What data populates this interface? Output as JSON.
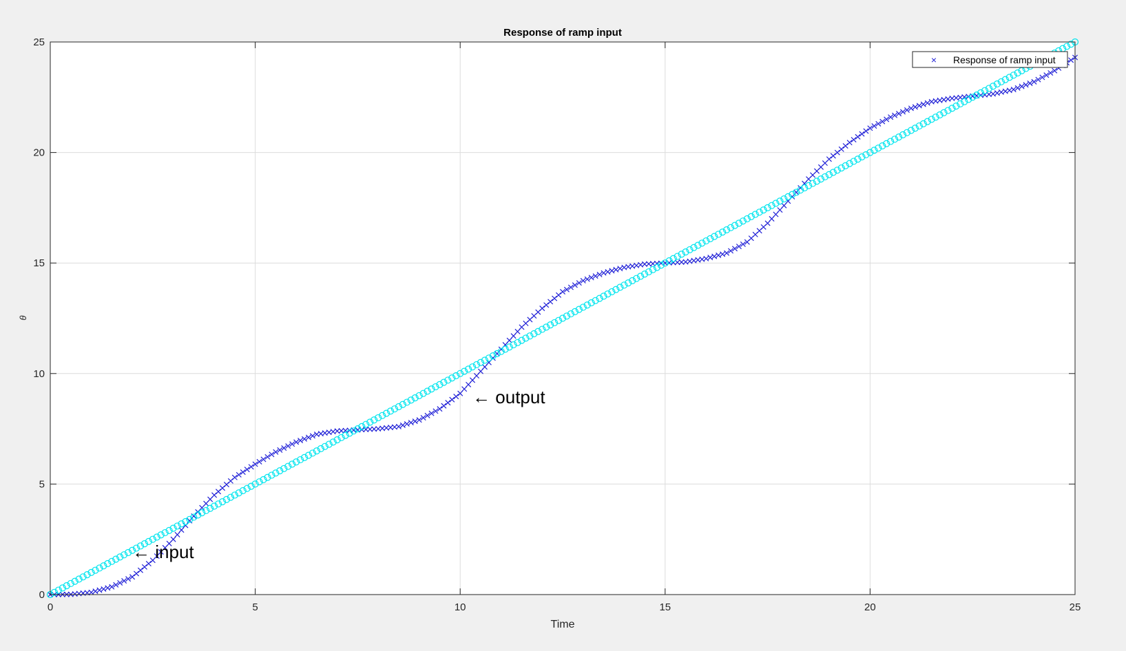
{
  "chart_data": {
    "type": "scatter",
    "title": "Response of ramp input",
    "xlabel": "Time",
    "ylabel": "θ",
    "xlim": [
      0,
      25
    ],
    "ylim": [
      0,
      25
    ],
    "xticks": [
      "0",
      "5",
      "10",
      "15",
      "20",
      "25"
    ],
    "yticks": [
      "0",
      "5",
      "10",
      "15",
      "20",
      "25"
    ],
    "grid": true,
    "legend_position": "top-right",
    "legend_entries": [
      "Response of ramp input"
    ],
    "annotations": [
      {
        "text": "← input",
        "x": 2.0,
        "y": 1.9
      },
      {
        "text": "← output",
        "x": 10.3,
        "y": 8.9
      }
    ],
    "series": [
      {
        "label": "Response of ramp input",
        "marker": "x",
        "color": "#1f1fd6",
        "x": [
          0,
          0.5,
          1,
          1.5,
          2,
          2.5,
          3,
          3.5,
          4,
          4.5,
          5,
          5.5,
          6,
          6.5,
          7,
          7.5,
          8,
          8.5,
          9,
          9.5,
          10,
          10.5,
          11,
          11.5,
          12,
          12.5,
          13,
          13.5,
          14,
          14.5,
          15,
          15.5,
          16,
          16.5,
          17,
          17.5,
          18,
          18.5,
          19,
          19.5,
          20,
          20.5,
          21,
          21.5,
          22,
          22.5,
          23,
          23.5,
          24,
          24.5,
          25
        ],
        "y": [
          0,
          0.01,
          0.1,
          0.35,
          0.8,
          1.55,
          2.5,
          3.55,
          4.5,
          5.3,
          5.9,
          6.45,
          6.9,
          7.25,
          7.4,
          7.45,
          7.5,
          7.6,
          7.9,
          8.4,
          9.1,
          10.1,
          11.1,
          12.1,
          12.95,
          13.7,
          14.2,
          14.55,
          14.8,
          14.95,
          15.0,
          15.05,
          15.2,
          15.45,
          15.95,
          16.8,
          17.8,
          18.8,
          19.7,
          20.45,
          21.1,
          21.6,
          22.0,
          22.3,
          22.45,
          22.55,
          22.65,
          22.85,
          23.2,
          23.7,
          24.3
        ]
      },
      {
        "label": "",
        "marker": "o",
        "color": "#00e5ee",
        "x": [
          0,
          0.5,
          1,
          1.5,
          2,
          2.5,
          3,
          3.5,
          4,
          4.5,
          5,
          5.5,
          6,
          6.5,
          7,
          7.5,
          8,
          8.5,
          9,
          9.5,
          10,
          10.5,
          11,
          11.5,
          12,
          12.5,
          13,
          13.5,
          14,
          14.5,
          15,
          15.5,
          16,
          16.5,
          17,
          17.5,
          18,
          18.5,
          19,
          19.5,
          20,
          20.5,
          21,
          21.5,
          22,
          22.5,
          23,
          23.5,
          24,
          24.5,
          25
        ],
        "y": [
          0,
          0.5,
          1,
          1.5,
          2,
          2.5,
          3,
          3.5,
          4,
          4.5,
          5,
          5.5,
          6,
          6.5,
          7,
          7.5,
          8,
          8.5,
          9,
          9.5,
          10,
          10.5,
          11,
          11.5,
          12,
          12.5,
          13,
          13.5,
          14,
          14.5,
          15,
          15.5,
          16,
          16.5,
          17,
          17.5,
          18,
          18.5,
          19,
          19.5,
          20,
          20.5,
          21,
          21.5,
          22,
          22.5,
          23,
          23.5,
          24,
          24.5,
          25
        ]
      }
    ]
  }
}
